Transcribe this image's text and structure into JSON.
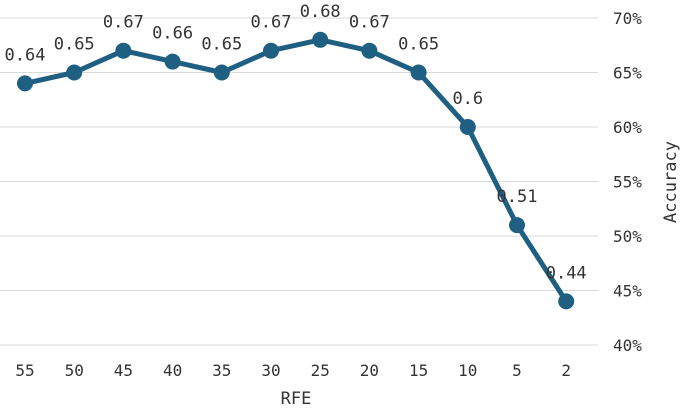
{
  "chart_data": {
    "type": "line",
    "categories": [
      "55",
      "50",
      "45",
      "40",
      "35",
      "30",
      "25",
      "20",
      "15",
      "10",
      "5",
      "2"
    ],
    "series": [
      {
        "values": [
          0.64,
          0.65,
          0.67,
          0.66,
          0.65,
          0.67,
          0.68,
          0.67,
          0.65,
          0.6,
          0.51,
          0.44
        ]
      }
    ],
    "data_labels": [
      "0.64",
      "0.65",
      "0.67",
      "0.66",
      "0.65",
      "0.67",
      "0.68",
      "0.67",
      "0.65",
      "0.6",
      "0.51",
      "0.44"
    ],
    "y_ticks": [
      "40%",
      "45%",
      "50%",
      "55%",
      "60%",
      "65%",
      "70%"
    ],
    "ylim": [
      0.4,
      0.7
    ],
    "xlabel": "RFE",
    "ylabel": "Accuracy",
    "y_axis_position": "right",
    "grid": "horizontal",
    "line_color": "#1f5f82",
    "grid_color": "#d9d9d9"
  }
}
